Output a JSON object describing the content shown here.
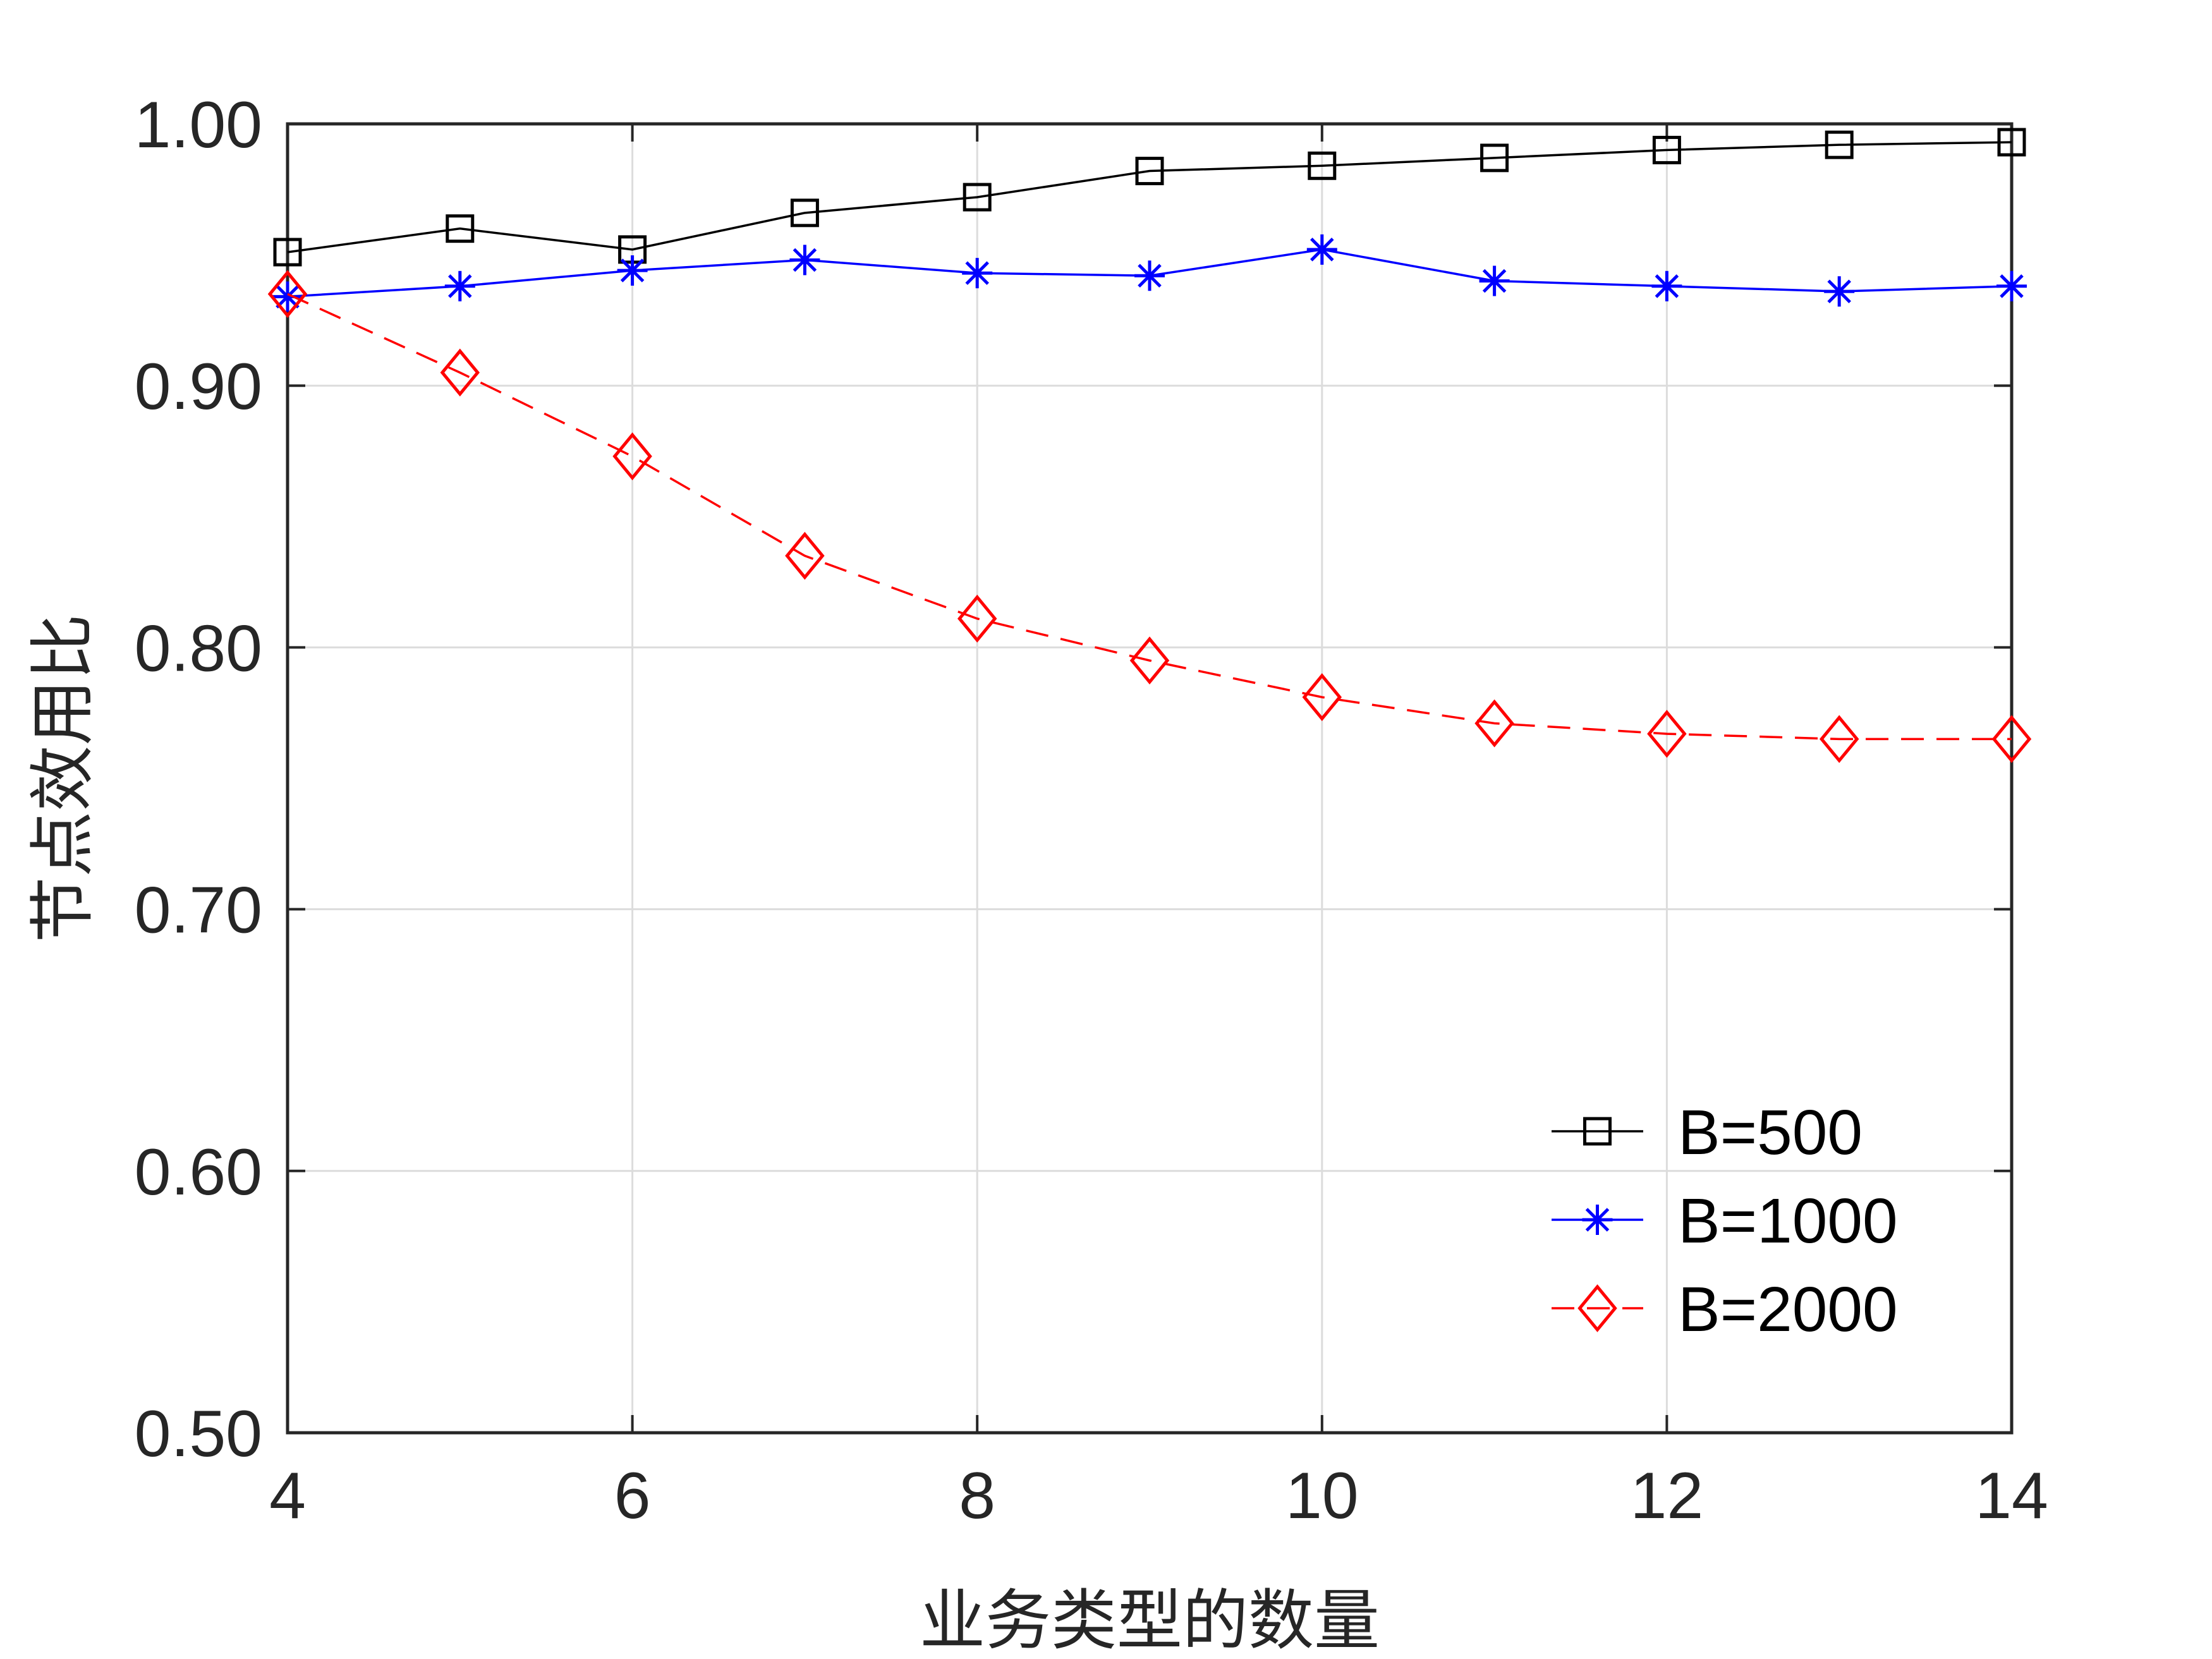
{
  "chart_data": {
    "type": "line",
    "title": "",
    "xlabel": "业务类型的数量",
    "ylabel": "节点效用比",
    "xlim": [
      4,
      14
    ],
    "ylim": [
      0.5,
      1.0
    ],
    "xticks": [
      4,
      6,
      8,
      10,
      12,
      14
    ],
    "xtick_labels": [
      "4",
      "6",
      "8",
      "10",
      "12",
      "14"
    ],
    "yticks": [
      0.5,
      0.6,
      0.7,
      0.8,
      0.9,
      1.0
    ],
    "ytick_labels": [
      "0.50",
      "0.60",
      "0.70",
      "0.80",
      "0.90",
      "1.00"
    ],
    "grid": true,
    "legend_position": "lower-right",
    "x": [
      4,
      5,
      6,
      7,
      8,
      9,
      10,
      11,
      12,
      13,
      14
    ],
    "series": [
      {
        "name": "B=500",
        "color": "#000000",
        "marker": "square",
        "line_style": "solid",
        "values": [
          0.951,
          0.96,
          0.952,
          0.966,
          0.972,
          0.982,
          0.984,
          0.987,
          0.99,
          0.992,
          0.993
        ]
      },
      {
        "name": "B=1000",
        "color": "#0000ff",
        "marker": "asterisk",
        "line_style": "solid",
        "values": [
          0.934,
          0.938,
          0.944,
          0.948,
          0.943,
          0.942,
          0.952,
          0.94,
          0.938,
          0.936,
          0.938
        ]
      },
      {
        "name": "B=2000",
        "color": "#ff0000",
        "marker": "diamond",
        "line_style": "dashed",
        "values": [
          0.935,
          0.905,
          0.873,
          0.835,
          0.811,
          0.795,
          0.781,
          0.771,
          0.767,
          0.765,
          0.765
        ]
      }
    ]
  }
}
